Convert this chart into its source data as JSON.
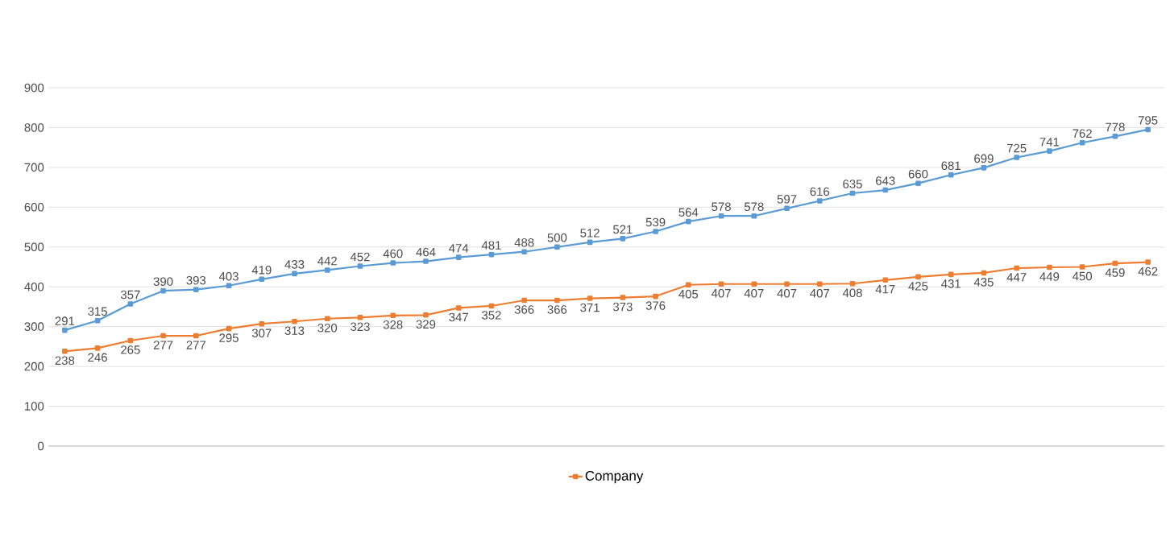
{
  "chart_data": {
    "type": "line",
    "categories": [
      null,
      null,
      null,
      null,
      null,
      null,
      null,
      null,
      null,
      null,
      null,
      null,
      null,
      null,
      null,
      null,
      null,
      null,
      null,
      null,
      null,
      null,
      null,
      null,
      null,
      null,
      null,
      null,
      null,
      null,
      null,
      null,
      null,
      null
    ],
    "series": [
      {
        "color": "#5b9bd5",
        "values": [
          291,
          315,
          357,
          390,
          393,
          403,
          419,
          433,
          442,
          452,
          460,
          464,
          474,
          481,
          488,
          500,
          512,
          521,
          539,
          564,
          578,
          578,
          597,
          616,
          635,
          643,
          660,
          681,
          699,
          725,
          741,
          762,
          778,
          795
        ]
      },
      {
        "name": "Company",
        "color": "#ed7d31",
        "values": [
          238,
          246,
          265,
          277,
          277,
          295,
          307,
          313,
          320,
          323,
          328,
          329,
          347,
          352,
          366,
          366,
          371,
          373,
          376,
          405,
          407,
          407,
          407,
          407,
          408,
          417,
          425,
          431,
          435,
          447,
          449,
          450,
          459,
          462
        ]
      }
    ],
    "ylim": [
      0,
      900
    ],
    "yticks": [
      0,
      100,
      200,
      300,
      400,
      500,
      600,
      700,
      800,
      900
    ],
    "grid": "y",
    "legend": "bottom",
    "marker": "square",
    "line_style": "solid",
    "data_labels": true
  }
}
